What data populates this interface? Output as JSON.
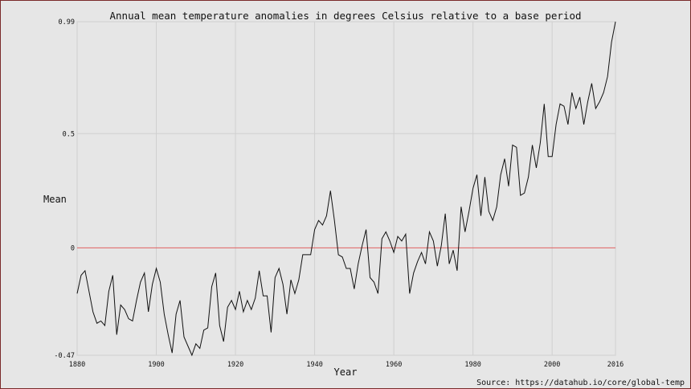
{
  "chart_data": {
    "type": "line",
    "title": "Annual mean temperature anomalies in degrees Celsius relative to a base period",
    "xlabel": "Year",
    "ylabel": "Mean",
    "source": "Source: https://datahub.io/core/global-temp",
    "xlim": [
      1880,
      2016
    ],
    "ylim": [
      -0.47,
      0.99
    ],
    "x_ticks": [
      1880,
      1900,
      1920,
      1940,
      1960,
      1980,
      2000,
      2016
    ],
    "y_ticks": [
      -0.47,
      0,
      0.5,
      0.99
    ],
    "y_tick_labels": [
      "-0.47",
      "0",
      "0.5",
      "0.99"
    ],
    "grid": true,
    "reference_line": {
      "value": 0,
      "color": "#e06060"
    },
    "colors": {
      "background": "#e6e6e6",
      "plot_background": "#e6e6e6",
      "grid": "#d0d0d0",
      "line": "#111111",
      "reference": "#e06060"
    },
    "series": [
      {
        "x": [
          1880,
          1881,
          1882,
          1883,
          1884,
          1885,
          1886,
          1887,
          1888,
          1889,
          1890,
          1891,
          1892,
          1893,
          1894,
          1895,
          1896,
          1897,
          1898,
          1899,
          1900,
          1901,
          1902,
          1903,
          1904,
          1905,
          1906,
          1907,
          1908,
          1909,
          1910,
          1911,
          1912,
          1913,
          1914,
          1915,
          1916,
          1917,
          1918,
          1919,
          1920,
          1921,
          1922,
          1923,
          1924,
          1925,
          1926,
          1927,
          1928,
          1929,
          1930,
          1931,
          1932,
          1933,
          1934,
          1935,
          1936,
          1937,
          1938,
          1939,
          1940,
          1941,
          1942,
          1943,
          1944,
          1945,
          1946,
          1947,
          1948,
          1949,
          1950,
          1951,
          1952,
          1953,
          1954,
          1955,
          1956,
          1957,
          1958,
          1959,
          1960,
          1961,
          1962,
          1963,
          1964,
          1965,
          1966,
          1967,
          1968,
          1969,
          1970,
          1971,
          1972,
          1973,
          1974,
          1975,
          1976,
          1977,
          1978,
          1979,
          1980,
          1981,
          1982,
          1983,
          1984,
          1985,
          1986,
          1987,
          1988,
          1989,
          1990,
          1991,
          1992,
          1993,
          1994,
          1995,
          1996,
          1997,
          1998,
          1999,
          2000,
          2001,
          2002,
          2003,
          2004,
          2005,
          2006,
          2007,
          2008,
          2009,
          2010,
          2011,
          2012,
          2013,
          2014,
          2015,
          2016
        ],
        "values": [
          -0.2,
          -0.12,
          -0.1,
          -0.19,
          -0.28,
          -0.33,
          -0.32,
          -0.34,
          -0.19,
          -0.12,
          -0.38,
          -0.25,
          -0.27,
          -0.31,
          -0.32,
          -0.23,
          -0.15,
          -0.11,
          -0.28,
          -0.16,
          -0.09,
          -0.15,
          -0.29,
          -0.38,
          -0.46,
          -0.29,
          -0.23,
          -0.39,
          -0.43,
          -0.47,
          -0.42,
          -0.44,
          -0.36,
          -0.35,
          -0.17,
          -0.11,
          -0.34,
          -0.41,
          -0.26,
          -0.23,
          -0.27,
          -0.19,
          -0.28,
          -0.23,
          -0.27,
          -0.22,
          -0.1,
          -0.21,
          -0.21,
          -0.37,
          -0.13,
          -0.09,
          -0.16,
          -0.29,
          -0.14,
          -0.2,
          -0.14,
          -0.03,
          -0.03,
          -0.03,
          0.08,
          0.12,
          0.1,
          0.14,
          0.25,
          0.12,
          -0.03,
          -0.04,
          -0.09,
          -0.09,
          -0.18,
          -0.07,
          0.01,
          0.08,
          -0.13,
          -0.15,
          -0.2,
          0.04,
          0.07,
          0.03,
          -0.02,
          0.05,
          0.03,
          0.06,
          -0.2,
          -0.11,
          -0.06,
          -0.02,
          -0.07,
          0.07,
          0.03,
          -0.08,
          0.01,
          0.15,
          -0.07,
          -0.01,
          -0.1,
          0.18,
          0.07,
          0.16,
          0.26,
          0.32,
          0.14,
          0.31,
          0.16,
          0.12,
          0.18,
          0.32,
          0.39,
          0.27,
          0.45,
          0.44,
          0.23,
          0.24,
          0.31,
          0.45,
          0.35,
          0.46,
          0.63,
          0.4,
          0.4,
          0.54,
          0.63,
          0.62,
          0.54,
          0.68,
          0.61,
          0.66,
          0.54,
          0.64,
          0.72,
          0.61,
          0.64,
          0.68,
          0.75,
          0.9,
          0.99
        ]
      }
    ]
  }
}
